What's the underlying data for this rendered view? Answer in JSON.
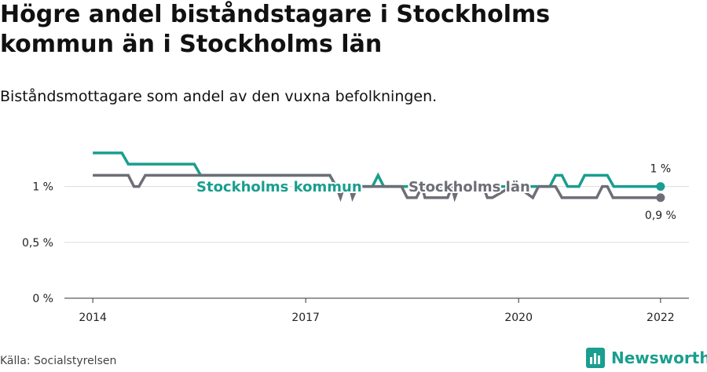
{
  "chart_data": {
    "type": "line",
    "title_lines": [
      "Högre andel biståndstagare i Stockholms",
      "kommun än i Stockholms län"
    ],
    "subtitle": "Biståndsmottagare som andel av den vuxna befolkningen.",
    "source": "Källa: Socialstyrelsen",
    "brand": "Newsworthy",
    "xlim": [
      2013.6,
      2022.4
    ],
    "xticks": [
      2014,
      2017,
      2020,
      2022
    ],
    "ylim": [
      0,
      1.44
    ],
    "yticks": [
      {
        "value": 0,
        "label": "0 %"
      },
      {
        "value": 0.5,
        "label": "0,5 %"
      },
      {
        "value": 1,
        "label": "1 %"
      }
    ],
    "grid": true,
    "series": [
      {
        "name": "Stockholms kommun",
        "color": "#1a9e8f",
        "x": [
          2014,
          2014.41,
          2014.5,
          2015.43,
          2015.52,
          2017.34,
          2017.43,
          2017.94,
          2018.02,
          2018.1,
          2020.44,
          2020.52,
          2020.61,
          2020.69,
          2020.85,
          2020.93,
          2021.25,
          2021.34,
          2022
        ],
        "values": [
          1.3,
          1.3,
          1.2,
          1.2,
          1.1,
          1.1,
          1.0,
          1.0,
          1.1,
          1.0,
          1.0,
          1.1,
          1.1,
          1.0,
          1.0,
          1.1,
          1.1,
          1.0,
          1.0
        ],
        "value_labels": [
          null,
          null,
          null,
          null,
          null,
          null,
          null,
          null,
          null,
          null,
          null,
          null,
          null,
          null,
          null,
          null,
          null,
          null,
          "1 %"
        ]
      },
      {
        "name": "Stockholms län",
        "color": "#6d6e76",
        "x": [
          2014,
          2014.5,
          2014.58,
          2014.65,
          2014.74,
          2017.34,
          2017.43,
          2017.49,
          2017.54,
          2017.62,
          2017.66,
          2017.73,
          2018.35,
          2018.43,
          2018.56,
          2018.64,
          2018.68,
          2019.0,
          2019.06,
          2019.1,
          2019.16,
          2019.5,
          2019.56,
          2019.63,
          2019.9,
          2019.98,
          2020.2,
          2020.28,
          2020.36,
          2020.52,
          2020.61,
          2020.69,
          2021.1,
          2021.18,
          2021.25,
          2021.33,
          2022
        ],
        "values": [
          1.1,
          1.1,
          1.0,
          1.0,
          1.1,
          1.1,
          1.0,
          0.9,
          1.0,
          1.0,
          0.9,
          1.0,
          1.0,
          0.9,
          0.9,
          1.0,
          0.9,
          0.9,
          1.0,
          0.9,
          1.0,
          1.0,
          0.9,
          0.9,
          1.0,
          1.0,
          0.9,
          1.0,
          1.0,
          1.0,
          0.9,
          0.9,
          0.9,
          1.0,
          1.0,
          0.9,
          0.9
        ],
        "value_labels": [
          null,
          null,
          null,
          null,
          null,
          null,
          null,
          null,
          null,
          null,
          null,
          null,
          null,
          null,
          null,
          null,
          null,
          null,
          null,
          null,
          null,
          null,
          null,
          null,
          null,
          null,
          null,
          null,
          null,
          null,
          null,
          null,
          null,
          null,
          null,
          null,
          "0,9 %"
        ]
      }
    ]
  }
}
